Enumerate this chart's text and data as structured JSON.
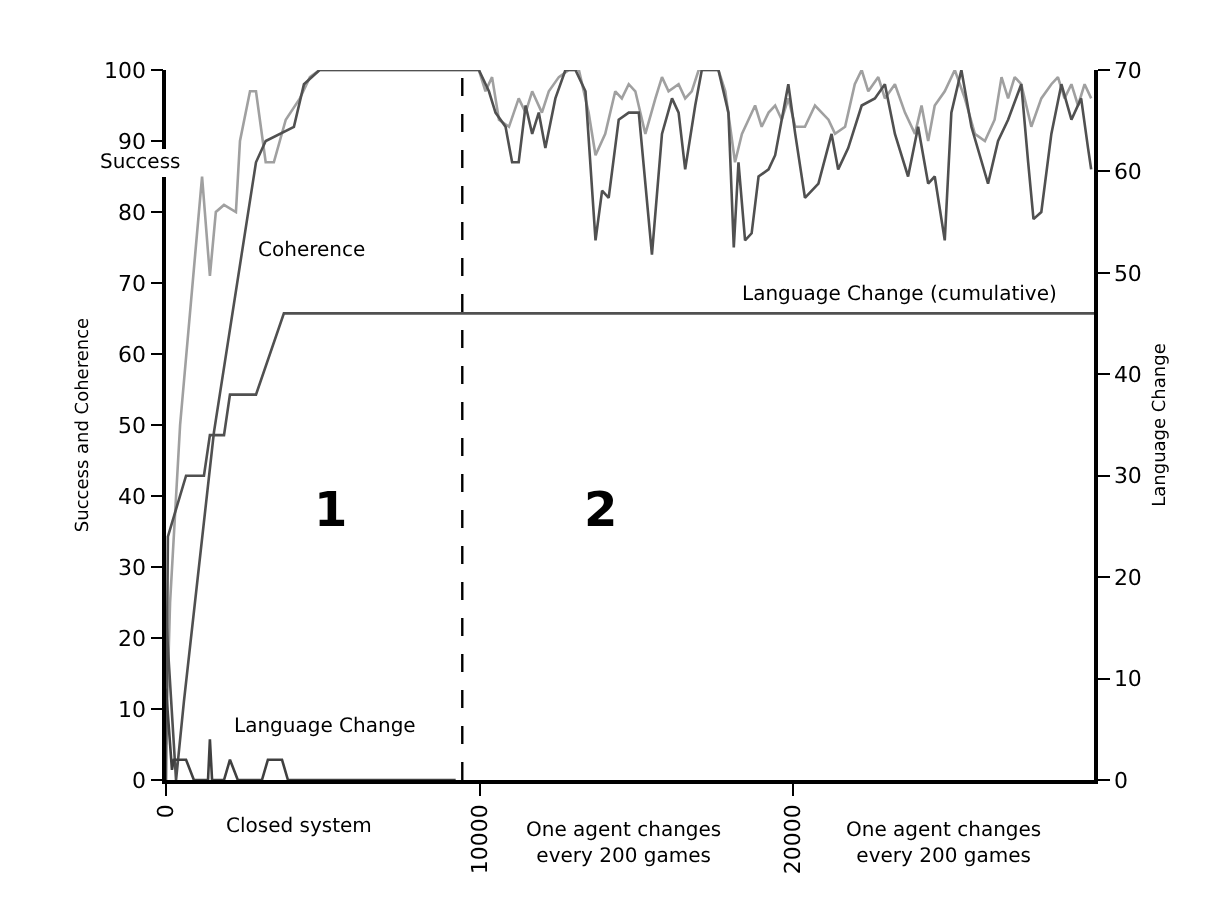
{
  "chart_data": {
    "type": "line",
    "xlabel": null,
    "ylabel": "Success and Coherence",
    "y2label": "Language Change",
    "xlim": [
      0,
      29600
    ],
    "xticks": [
      0,
      10000,
      20000
    ],
    "ylim": [
      0,
      100
    ],
    "yticks": [
      0,
      10,
      20,
      30,
      40,
      50,
      60,
      70,
      80,
      90,
      100
    ],
    "y2lim": [
      0,
      70
    ],
    "y2ticks": [
      0,
      10,
      20,
      30,
      40,
      50,
      60,
      70
    ],
    "marker": "none",
    "line_style": "solid",
    "ref_lines": [
      {
        "axis": "x",
        "value": 9450,
        "color": "#000000",
        "line_style": "dashed"
      }
    ],
    "annotations": [
      "Success",
      "Coherence",
      "Language Change (cumulative)",
      "Language Change",
      "1",
      "2",
      "Closed system",
      "One agent changes\nevery 200 games",
      "One agent changes\nevery 200 games"
    ],
    "series": [
      {
        "color": "#a0a0a0",
        "x": [
          0,
          130,
          450,
          1150,
          1400,
          1590,
          1850,
          2230,
          2360,
          2680,
          2870,
          3180,
          3440,
          3820,
          4270,
          4590,
          4900,
          9240,
          9980,
          10190,
          10400,
          10620,
          10940,
          11250,
          11470,
          11680,
          11990,
          12210,
          12530,
          12850,
          13170,
          13480,
          13700,
          14010,
          14330,
          14540,
          14760,
          14970,
          15290,
          15610,
          15820,
          16030,
          16350,
          16560,
          16770,
          16990,
          17620,
          17840,
          18150,
          18370,
          18580,
          18790,
          19000,
          19220,
          19430,
          19640,
          19850,
          20070,
          20380,
          20700,
          21130,
          21340,
          21660,
          21970,
          22190,
          22400,
          22720,
          22930,
          23250,
          23570,
          23890,
          24100,
          24310,
          24520,
          24840,
          25160,
          25480,
          25800,
          26120,
          26430,
          26650,
          26860,
          27070,
          27280,
          27600,
          27920,
          28240,
          28450,
          28660,
          28880,
          29090,
          29300,
          29510
        ],
        "values": [
          5,
          25,
          50,
          85,
          71,
          80,
          81,
          80,
          90,
          97,
          97,
          87,
          87,
          93,
          96,
          99,
          100,
          100,
          100,
          97,
          99,
          93,
          92,
          96,
          94,
          97,
          94,
          97,
          99,
          100,
          100,
          94,
          88,
          91,
          97,
          96,
          98,
          97,
          91,
          96,
          99,
          97,
          98,
          96,
          97,
          100,
          100,
          97,
          87,
          91,
          93,
          95,
          92,
          94,
          95,
          93,
          96,
          92,
          92,
          95,
          93,
          91,
          92,
          98,
          100,
          97,
          99,
          96,
          98,
          94,
          91,
          95,
          90,
          95,
          97,
          100,
          96,
          91,
          90,
          93,
          99,
          96,
          99,
          98,
          92,
          96,
          98,
          99,
          96,
          98,
          95,
          98,
          96
        ]
      },
      {
        "color": "#505050",
        "x": [
          0,
          320,
          570,
          1530,
          2870,
          3180,
          4080,
          4400,
          4900,
          9240,
          9980,
          10300,
          10510,
          10830,
          11040,
          11250,
          11470,
          11680,
          11890,
          12100,
          12420,
          12740,
          13060,
          13380,
          13700,
          13910,
          14120,
          14440,
          14760,
          15080,
          15500,
          15820,
          16140,
          16350,
          16560,
          16880,
          17090,
          17620,
          17940,
          18110,
          18260,
          18470,
          18680,
          18900,
          19220,
          19430,
          19850,
          20070,
          20380,
          20810,
          21230,
          21440,
          21760,
          22190,
          22610,
          22930,
          23250,
          23670,
          23990,
          24310,
          24520,
          24840,
          25050,
          25370,
          25690,
          26220,
          26540,
          26860,
          27280,
          27500,
          27670,
          27920,
          28240,
          28560,
          28880,
          29190,
          29410,
          29510
        ],
        "values": [
          23,
          0,
          11,
          49,
          87,
          90,
          92,
          98,
          100,
          100,
          100,
          97,
          94,
          92,
          87,
          87,
          95,
          91,
          94,
          89,
          96,
          100,
          100,
          97,
          76,
          83,
          82,
          93,
          94,
          94,
          74,
          91,
          96,
          94,
          86,
          95,
          100,
          100,
          94,
          75,
          87,
          76,
          77,
          85,
          86,
          88,
          98,
          91,
          82,
          84,
          91,
          86,
          89,
          95,
          96,
          98,
          91,
          85,
          92,
          84,
          85,
          76,
          94,
          100,
          92,
          84,
          90,
          93,
          98,
          87,
          79,
          80,
          91,
          98,
          93,
          96,
          89,
          86
        ]
      },
      {
        "color": "#505050",
        "axis": "y2",
        "x": [
          0,
          60,
          640,
          1210,
          1400,
          1850,
          2040,
          2870,
          3760,
          29600
        ],
        "values": [
          0,
          24,
          30,
          30,
          34,
          34,
          38,
          38,
          46,
          46
        ]
      },
      {
        "color": "#404040",
        "axis": "y2",
        "x": [
          0,
          190,
          250,
          640,
          890,
          1340,
          1400,
          1470,
          1850,
          2040,
          2290,
          3060,
          3250,
          3700,
          3890,
          9240
        ],
        "values": [
          9,
          1,
          2,
          2,
          0,
          0,
          4,
          0,
          0,
          2,
          0,
          0,
          2,
          2,
          0,
          0
        ]
      }
    ]
  }
}
